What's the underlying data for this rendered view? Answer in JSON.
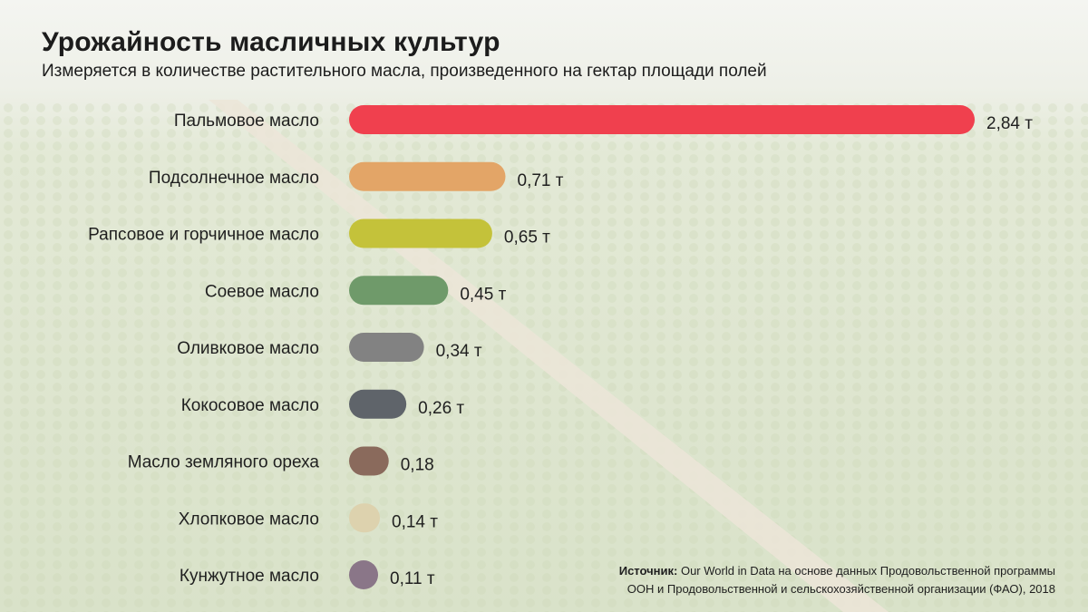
{
  "header": {
    "title": "Урожайность масличных культур",
    "subtitle": "Измеряется в количестве растительного масла, произведенного на гектар площади полей"
  },
  "source": {
    "label": "Источник:",
    "line1": "Our World in Data на основе данных Продовольственной программы",
    "line2": "ООН и Продовольственной и сельскохозяйственной организации (ФАО), 2018"
  },
  "colors": {
    "palm": "#f0404e",
    "sunflower": "#e3a567",
    "rapeseed": "#c4c23a",
    "soy": "#6f9a6a",
    "olive": "#828282",
    "coconut": "#5f646a",
    "peanut": "#8a6a5c",
    "cotton": "#ddd2ae",
    "sesame": "#8a7688"
  },
  "chart_data": {
    "type": "bar",
    "orientation": "horizontal",
    "title": "Урожайность масличных культур",
    "subtitle": "Измеряется в количестве растительного масла, произведенного на гектар площади полей",
    "xlabel": "",
    "ylabel": "",
    "xlim": [
      0,
      2.84
    ],
    "grid": false,
    "categories": [
      "Пальмовое масло",
      "Подсолнечное масло",
      "Рапсовое и горчичное масло",
      "Соевое масло",
      "Оливковое масло",
      "Кокосовое масло",
      "Масло земляного ореха",
      "Хлопковое масло",
      "Кунжутное масло"
    ],
    "values": [
      2.84,
      0.71,
      0.65,
      0.45,
      0.34,
      0.26,
      0.18,
      0.14,
      0.11
    ],
    "value_labels": [
      "2,84 т",
      "0,71 т",
      "0,65 т",
      "0,45 т",
      "0,34 т",
      "0,26 т",
      "0,18",
      "0,14 т",
      "0,11 т"
    ],
    "bar_colors": [
      "#f0404e",
      "#e3a567",
      "#c4c23a",
      "#6f9a6a",
      "#828282",
      "#5f646a",
      "#8a6a5c",
      "#ddd2ae",
      "#8a7688"
    ]
  }
}
